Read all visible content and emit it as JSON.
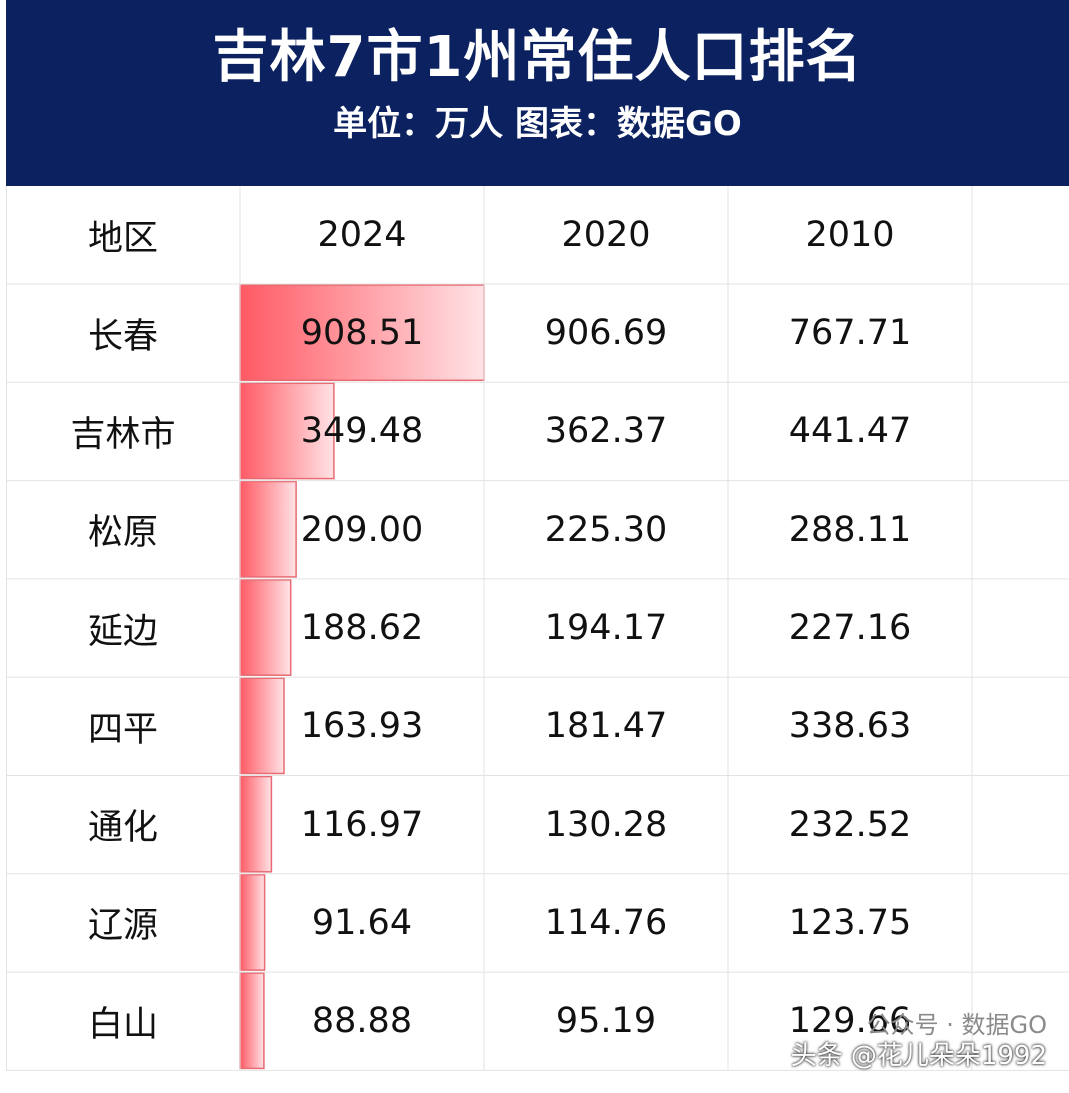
{
  "header": {
    "title": "吉林7市1州常住人口排名",
    "subtitle": "单位：万人 图表：数据GO"
  },
  "colors": {
    "header_bg": "#0b2160",
    "bar_strong": "#ff5a64",
    "bar_light": "#ffe3e6",
    "grid_line": "#e3e3e3"
  },
  "chart_data": {
    "type": "table",
    "columns": [
      "地区",
      "2024",
      "2020",
      "2010"
    ],
    "rows": [
      [
        "长春",
        "908.51",
        "906.69",
        "767.71"
      ],
      [
        "吉林市",
        "349.48",
        "362.37",
        "441.47"
      ],
      [
        "松原",
        "209.00",
        "225.30",
        "288.11"
      ],
      [
        "延边",
        "188.62",
        "194.17",
        "227.16"
      ],
      [
        "四平",
        "163.93",
        "181.47",
        "338.63"
      ],
      [
        "通化",
        "116.97",
        "130.28",
        "232.52"
      ],
      [
        "辽源",
        "91.64",
        "114.76",
        "123.75"
      ],
      [
        "白山",
        "88.88",
        "95.19",
        "129.66"
      ]
    ],
    "bar_column": "2024",
    "bar_values": [
      908.51,
      349.48,
      209.0,
      188.62,
      163.93,
      116.97,
      91.64,
      88.88
    ]
  },
  "watermark": {
    "line1": "公众号 · 数据GO",
    "line2": "头条 @花儿朵朵1992"
  }
}
